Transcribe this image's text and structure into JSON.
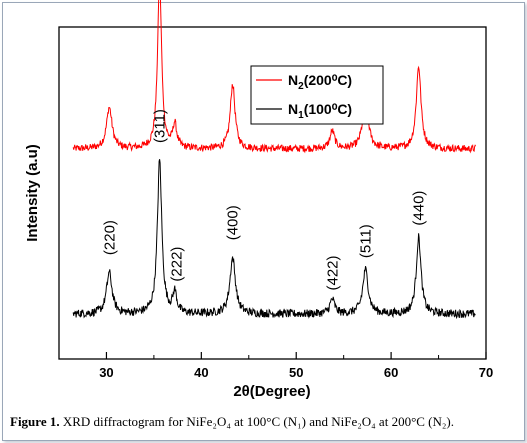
{
  "chart_data": {
    "type": "line",
    "xlabel": "2θ(Degree)",
    "ylabel": "Intensity (a.u)",
    "xlim": [
      25,
      70
    ],
    "xticks": [
      30,
      40,
      50,
      60,
      70
    ],
    "y_tick_labels": false,
    "grid": false,
    "legend_position": "top-right",
    "series": [
      {
        "name_main": "N",
        "name_sub": "2",
        "name_rest": "(200⁰C)",
        "color": "#ff0000",
        "baseline": 0.58,
        "noise": 0.012,
        "peaks": [
          {
            "x": 30.3,
            "h": 0.14,
            "w": 0.35
          },
          {
            "x": 35.6,
            "h": 0.58,
            "w": 0.25
          },
          {
            "x": 37.2,
            "h": 0.08,
            "w": 0.25
          },
          {
            "x": 43.3,
            "h": 0.22,
            "w": 0.3
          },
          {
            "x": 53.8,
            "h": 0.06,
            "w": 0.3
          },
          {
            "x": 57.3,
            "h": 0.17,
            "w": 0.35
          },
          {
            "x": 62.9,
            "h": 0.28,
            "w": 0.3
          }
        ]
      },
      {
        "name_main": "N",
        "name_sub": "1",
        "name_rest": "(100⁰C)",
        "color": "#000000",
        "baseline": 0.02,
        "noise": 0.014,
        "peaks": [
          {
            "x": 30.3,
            "h": 0.14,
            "w": 0.35
          },
          {
            "x": 35.6,
            "h": 0.52,
            "w": 0.28
          },
          {
            "x": 37.2,
            "h": 0.07,
            "w": 0.25
          },
          {
            "x": 43.3,
            "h": 0.19,
            "w": 0.35
          },
          {
            "x": 53.8,
            "h": 0.05,
            "w": 0.3
          },
          {
            "x": 57.3,
            "h": 0.15,
            "w": 0.35
          },
          {
            "x": 62.9,
            "h": 0.26,
            "w": 0.3
          }
        ]
      }
    ],
    "annotations": [
      {
        "text": "(220)",
        "x": 30.3,
        "y": 0.22
      },
      {
        "text": "(311)",
        "x": 35.6,
        "y": 0.6
      },
      {
        "text": "(222)",
        "x": 37.4,
        "y": 0.13
      },
      {
        "text": "(400)",
        "x": 43.3,
        "y": 0.27
      },
      {
        "text": "(422)",
        "x": 53.8,
        "y": 0.1
      },
      {
        "text": "(511)",
        "x": 57.3,
        "y": 0.21
      },
      {
        "text": "(440)",
        "x": 62.9,
        "y": 0.32
      }
    ]
  },
  "caption": {
    "label": "Figure 1.",
    "text": " XRD diffractogram for NiFe₂O₄ at 100°C (N₁) and NiFe₂O₄ at 200°C (N₂)."
  }
}
